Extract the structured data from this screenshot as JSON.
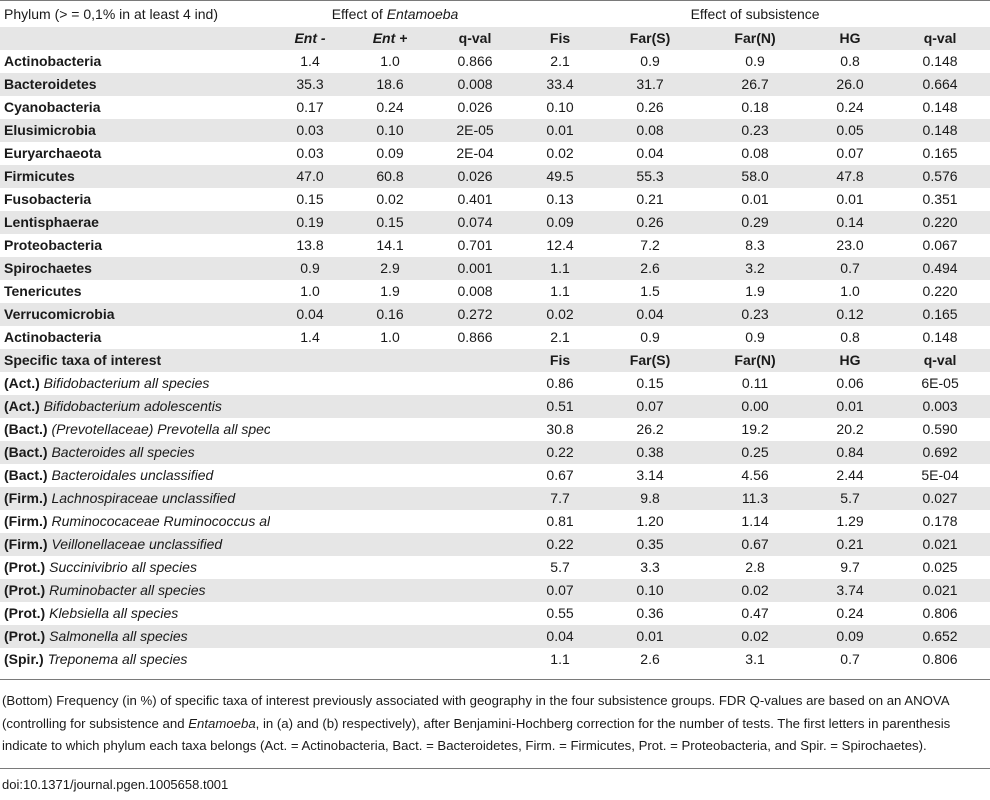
{
  "header": {
    "phylum_title": "Phylum (> = 0,1% in at least 4 ind)",
    "effect_entamoeba_prefix": "Effect of ",
    "effect_entamoeba_italic": "Entamoeba",
    "effect_subsistence": "Effect of subsistence"
  },
  "columns": [
    "Ent -",
    "Ent +",
    "q-val",
    "Fis",
    "Far(S)",
    "Far(N)",
    "HG",
    "q-val"
  ],
  "phylum_rows": [
    {
      "name": "Actinobacteria",
      "values": [
        "1.4",
        "1.0",
        "0.866",
        "2.1",
        "0.9",
        "0.9",
        "0.8",
        "0.148"
      ]
    },
    {
      "name": "Bacteroidetes",
      "values": [
        "35.3",
        "18.6",
        "0.008",
        "33.4",
        "31.7",
        "26.7",
        "26.0",
        "0.664"
      ]
    },
    {
      "name": "Cyanobacteria",
      "values": [
        "0.17",
        "0.24",
        "0.026",
        "0.10",
        "0.26",
        "0.18",
        "0.24",
        "0.148"
      ]
    },
    {
      "name": "Elusimicrobia",
      "values": [
        "0.03",
        "0.10",
        "2E-05",
        "0.01",
        "0.08",
        "0.23",
        "0.05",
        "0.148"
      ]
    },
    {
      "name": "Euryarchaeota",
      "values": [
        "0.03",
        "0.09",
        "2E-04",
        "0.02",
        "0.04",
        "0.08",
        "0.07",
        "0.165"
      ]
    },
    {
      "name": "Firmicutes",
      "values": [
        "47.0",
        "60.8",
        "0.026",
        "49.5",
        "55.3",
        "58.0",
        "47.8",
        "0.576"
      ]
    },
    {
      "name": "Fusobacteria",
      "values": [
        "0.15",
        "0.02",
        "0.401",
        "0.13",
        "0.21",
        "0.01",
        "0.01",
        "0.351"
      ]
    },
    {
      "name": "Lentisphaerae",
      "values": [
        "0.19",
        "0.15",
        "0.074",
        "0.09",
        "0.26",
        "0.29",
        "0.14",
        "0.220"
      ]
    },
    {
      "name": "Proteobacteria",
      "values": [
        "13.8",
        "14.1",
        "0.701",
        "12.4",
        "7.2",
        "8.3",
        "23.0",
        "0.067"
      ]
    },
    {
      "name": "Spirochaetes",
      "values": [
        "0.9",
        "2.9",
        "0.001",
        "1.1",
        "2.6",
        "3.2",
        "0.7",
        "0.494"
      ]
    },
    {
      "name": "Tenericutes",
      "values": [
        "1.0",
        "1.9",
        "0.008",
        "1.1",
        "1.5",
        "1.9",
        "1.0",
        "0.220"
      ]
    },
    {
      "name": "Verrucomicrobia",
      "values": [
        "0.04",
        "0.16",
        "0.272",
        "0.02",
        "0.04",
        "0.23",
        "0.12",
        "0.165"
      ]
    },
    {
      "name": "Actinobacteria",
      "values": [
        "1.4",
        "1.0",
        "0.866",
        "2.1",
        "0.9",
        "0.9",
        "0.8",
        "0.148"
      ]
    }
  ],
  "taxa_header": {
    "title": "Specific taxa of interest",
    "columns": [
      "Fis",
      "Far(S)",
      "Far(N)",
      "HG",
      "q-val"
    ]
  },
  "taxa_rows": [
    {
      "prefix": "(Act.)",
      "name": "Bifidobacterium all species",
      "values": [
        "0.86",
        "0.15",
        "0.11",
        "0.06",
        "6E-05"
      ]
    },
    {
      "prefix": "(Act.)",
      "name": "Bifidobacterium adolescentis",
      "values": [
        "0.51",
        "0.07",
        "0.00",
        "0.01",
        "0.003"
      ]
    },
    {
      "prefix": "(Bact.)",
      "name": "(Prevotellaceae) Prevotella all species",
      "values": [
        "30.8",
        "26.2",
        "19.2",
        "20.2",
        "0.590"
      ]
    },
    {
      "prefix": "(Bact.)",
      "name": "Bacteroides all species",
      "values": [
        "0.22",
        "0.38",
        "0.25",
        "0.84",
        "0.692"
      ]
    },
    {
      "prefix": "(Bact.)",
      "name": "Bacteroidales unclassified",
      "values": [
        "0.67",
        "3.14",
        "4.56",
        "2.44",
        "5E-04"
      ]
    },
    {
      "prefix": "(Firm.)",
      "name": "Lachnospiraceae unclassified",
      "values": [
        "7.7",
        "9.8",
        "11.3",
        "5.7",
        "0.027"
      ]
    },
    {
      "prefix": "(Firm.)",
      "name": "Ruminococaceae Ruminococcus all species",
      "values": [
        "0.81",
        "1.20",
        "1.14",
        "1.29",
        "0.178"
      ]
    },
    {
      "prefix": "(Firm.)",
      "name": "Veillonellaceae unclassified",
      "values": [
        "0.22",
        "0.35",
        "0.67",
        "0.21",
        "0.021"
      ]
    },
    {
      "prefix": "(Prot.)",
      "name": "Succinivibrio all species",
      "values": [
        "5.7",
        "3.3",
        "2.8",
        "9.7",
        "0.025"
      ]
    },
    {
      "prefix": "(Prot.)",
      "name": "Ruminobacter all species",
      "values": [
        "0.07",
        "0.10",
        "0.02",
        "3.74",
        "0.021"
      ]
    },
    {
      "prefix": "(Prot.)",
      "name": "Klebsiella all species",
      "values": [
        "0.55",
        "0.36",
        "0.47",
        "0.24",
        "0.806"
      ]
    },
    {
      "prefix": "(Prot.)",
      "name": "Salmonella all species",
      "values": [
        "0.04",
        "0.01",
        "0.02",
        "0.09",
        "0.652"
      ]
    },
    {
      "prefix": "(Spir.)",
      "name": "Treponema all species",
      "values": [
        "1.1",
        "2.6",
        "3.1",
        "0.7",
        "0.806"
      ]
    }
  ],
  "caption": {
    "part1": "(Bottom) Frequency (in %) of specific taxa of interest previously associated with geography in the four subsistence groups. FDR Q-values are based on an ANOVA (controlling for subsistence and ",
    "italic": "Entamoeba",
    "part2": ", in (a) and (b) respectively), after Benjamini-Hochberg correction for the number of tests. The first letters in parenthesis indicate to which phylum each taxa belongs (Act. = Actinobacteria, Bact. = Bacteroidetes, Firm. = Firmicutes, Prot. = Proteobacteria, and Spir. = Spirochaetes)."
  },
  "doi": "doi:10.1371/journal.pgen.1005658.t001"
}
